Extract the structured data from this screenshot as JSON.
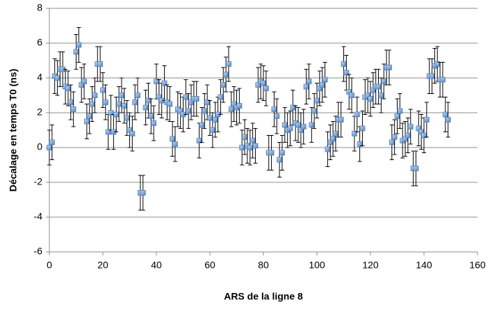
{
  "chart_data": {
    "type": "scatter",
    "x_label": "ARS de la ligne 8",
    "y_label": "Décalage en temps T0 (ns)",
    "xlim": [
      0,
      160
    ],
    "xticks": [
      0,
      20,
      40,
      60,
      80,
      100,
      120,
      140,
      160
    ],
    "ylim": [
      -6,
      8
    ],
    "yticks": [
      -6,
      -4,
      -2,
      0,
      2,
      4,
      6,
      8
    ],
    "grid": true,
    "error": 1,
    "series": [
      {
        "color": "#4f81bd",
        "x": [
          0,
          1,
          2,
          3,
          4,
          5,
          6,
          7,
          8,
          9,
          10,
          11,
          12,
          13,
          14,
          15,
          16,
          17,
          18,
          19,
          20,
          21,
          22,
          23,
          24,
          25,
          26,
          27,
          28,
          29,
          30,
          31,
          32,
          33,
          34,
          35,
          36,
          37,
          38,
          39,
          40,
          41,
          42,
          43,
          44,
          45,
          46,
          47,
          48,
          49,
          50,
          51,
          52,
          53,
          54,
          55,
          56,
          57,
          58,
          59,
          60,
          61,
          62,
          63,
          64,
          65,
          66,
          67,
          68,
          69,
          70,
          71,
          72,
          73,
          74,
          75,
          76,
          77,
          78,
          79,
          80,
          81,
          82,
          83,
          84,
          85,
          86,
          87,
          88,
          89,
          90,
          91,
          92,
          93,
          94,
          95,
          96,
          97,
          98,
          99,
          100,
          101,
          102,
          103,
          104,
          105,
          106,
          107,
          108,
          109,
          110,
          111,
          112,
          113,
          114,
          115,
          116,
          117,
          118,
          119,
          120,
          121,
          122,
          123,
          124,
          125,
          126,
          127,
          128,
          129,
          130,
          131,
          132,
          133,
          134,
          135,
          136,
          137,
          138,
          139,
          140,
          141,
          142,
          143,
          144,
          145,
          146,
          147,
          148,
          149
        ],
        "values": [
          0.0,
          0.3,
          4.1,
          4.0,
          4.5,
          4.5,
          3.5,
          3.4,
          2.6,
          2.2,
          5.5,
          5.9,
          3.6,
          3.8,
          1.5,
          1.8,
          2.5,
          3.0,
          4.8,
          4.8,
          3.3,
          2.6,
          0.9,
          2.0,
          0.9,
          1.9,
          2.5,
          3.0,
          2.4,
          1.7,
          1.0,
          0.8,
          2.6,
          3.0,
          -2.6,
          -2.6,
          2.3,
          2.7,
          1.8,
          1.4,
          3.8,
          2.9,
          2.7,
          3.7,
          2.6,
          2.5,
          0.5,
          0.2,
          2.2,
          2.1,
          1.9,
          2.9,
          2.1,
          2.6,
          2.8,
          2.8,
          0.4,
          1.3,
          2.1,
          2.6,
          1.7,
          1.0,
          1.6,
          1.9,
          2.9,
          3.6,
          4.2,
          4.8,
          2.2,
          2.5,
          2.3,
          2.4,
          0.0,
          0.6,
          0.1,
          0.0,
          0.4,
          0.1,
          3.6,
          3.8,
          3.7,
          3.4,
          -0.3,
          -0.3,
          2.2,
          1.8,
          -0.7,
          -0.3,
          1.3,
          1.0,
          1.1,
          2.3,
          1.4,
          1.3,
          1.0,
          1.2,
          3.5,
          3.8,
          1.3,
          2.1,
          2.7,
          3.4,
          3.6,
          3.9,
          -0.1,
          0.3,
          0.5,
          0.8,
          1.6,
          1.6,
          4.8,
          4.3,
          3.2,
          3.0,
          0.8,
          1.9,
          0.2,
          1.1,
          2.9,
          3.0,
          2.8,
          3.3,
          3.5,
          3.5,
          3.0,
          3.8,
          4.6,
          4.6,
          0.3,
          0.6,
          1.8,
          2.1,
          0.4,
          0.5,
          0.7,
          1.2,
          -1.2,
          -1.2,
          1.1,
          0.9,
          0.7,
          1.6,
          4.1,
          4.1,
          4.7,
          4.8,
          3.9,
          3.9,
          1.9,
          1.6
        ]
      }
    ]
  }
}
